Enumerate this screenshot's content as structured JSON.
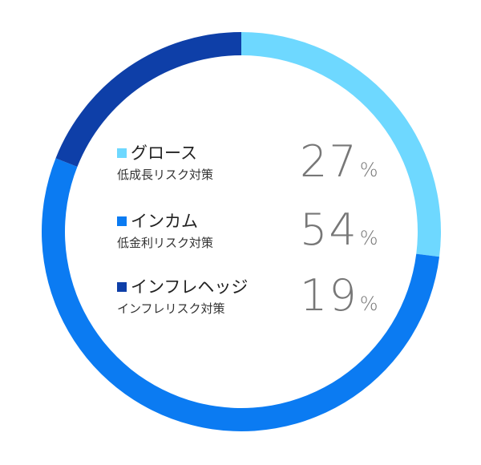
{
  "chart_data": {
    "type": "pie",
    "style": "donut",
    "categories": [
      "グロース",
      "インカム",
      "インフレヘッジ"
    ],
    "values": [
      27,
      54,
      19
    ],
    "colors": [
      "#6ED8FF",
      "#0B7BF2",
      "#0E3FA8"
    ],
    "unit": "%",
    "legend_placement": "center",
    "series": [
      {
        "name": "グロース",
        "subtitle": "低成長リスク対策",
        "value": 27
      },
      {
        "name": "インカム",
        "subtitle": "低金利リスク対策",
        "value": 54
      },
      {
        "name": "インフレヘッジ",
        "subtitle": "インフレリスク対策",
        "value": 19
      }
    ]
  }
}
